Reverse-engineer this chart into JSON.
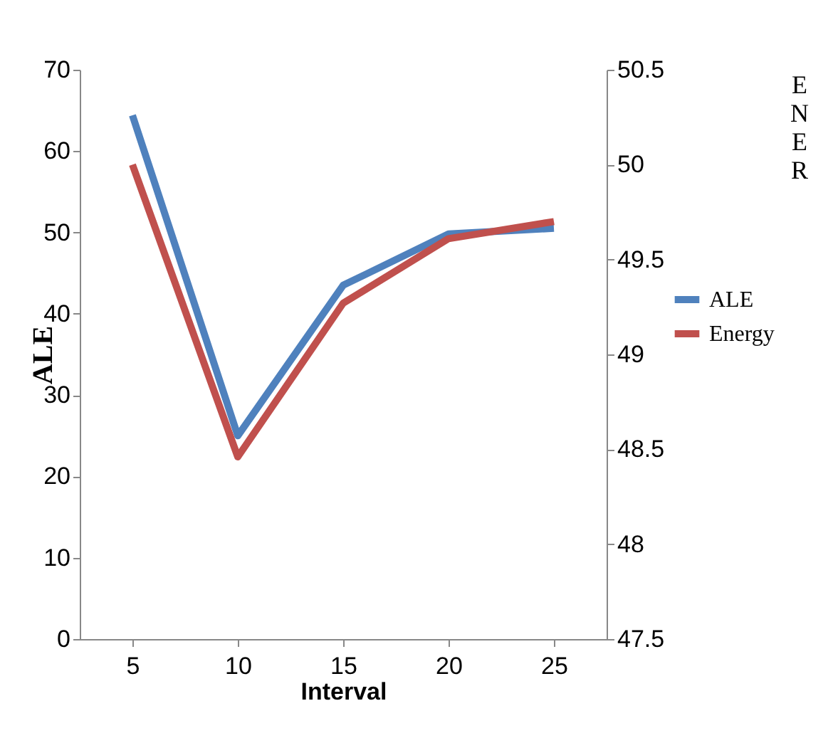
{
  "chart_data": {
    "type": "line",
    "xlabel": "Interval",
    "ylabel": "ALE",
    "y2label": "ENER",
    "categories": [
      "5",
      "10",
      "15",
      "20",
      "25"
    ],
    "series": [
      {
        "name": "ALE",
        "color": "#4f81bd",
        "values": [
          64.4,
          25,
          43.5,
          49.8,
          50.5
        ]
      },
      {
        "name": "Energy",
        "color": "#c0504d",
        "axis": "y2",
        "values": [
          50.0,
          48.46,
          49.27,
          49.61,
          49.7
        ]
      }
    ],
    "ylim": [
      0,
      70
    ],
    "yticks": [
      0,
      10,
      20,
      30,
      40,
      50,
      60,
      70
    ],
    "y2lim": [
      47.5,
      50.5
    ],
    "y2ticks": [
      47.5,
      48,
      48.5,
      49,
      49.5,
      50,
      50.5
    ],
    "legend": "right"
  }
}
